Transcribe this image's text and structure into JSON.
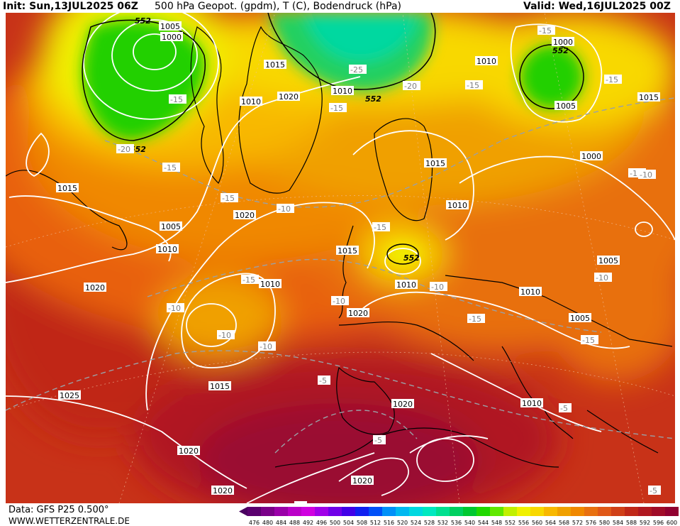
{
  "header": {
    "init": "Init: Sun,13JUL2025 06Z",
    "title": "500 hPa Geopot. (gpdm), T (C), Bodendruck (hPa)",
    "valid": "Valid: Wed,16JUL2025 00Z"
  },
  "footer": {
    "data_label": "Data: GFS P25 0.500°",
    "site": "WWW.WETTERZENTRALE.DE"
  },
  "colorbar": {
    "ticks": [
      "476",
      "480",
      "484",
      "488",
      "492",
      "496",
      "500",
      "504",
      "508",
      "512",
      "516",
      "520",
      "524",
      "528",
      "532",
      "536",
      "540",
      "544",
      "548",
      "552",
      "556",
      "560",
      "564",
      "568",
      "572",
      "576",
      "580",
      "584",
      "588",
      "592",
      "596",
      "600"
    ],
    "colors": [
      "#5a006e",
      "#7a0088",
      "#9a00a8",
      "#bb00c8",
      "#d000e0",
      "#a000e8",
      "#7000e8",
      "#4000e8",
      "#1020f0",
      "#0050f8",
      "#0090f8",
      "#00b8f0",
      "#00d8e0",
      "#00e8c0",
      "#00e090",
      "#00d060",
      "#00c830",
      "#20d800",
      "#60e800",
      "#c0f000",
      "#f0f000",
      "#f8d800",
      "#f8b800",
      "#f0a000",
      "#f08800",
      "#e87010",
      "#e05818",
      "#d04018",
      "#c02818",
      "#b01820",
      "#a00c28",
      "#900030"
    ],
    "arrow_left": "#4a0060",
    "arrow_right": "#e040e0"
  },
  "isobar_labels": [
    "1005",
    "1000",
    "1015",
    "1010",
    "1020",
    "1010",
    "1010",
    "1000",
    "1005",
    "1015",
    "1000",
    "1015",
    "1005",
    "1010",
    "1020",
    "1015",
    "1010",
    "1010",
    "1020",
    "1010",
    "1020",
    "1005",
    "1010",
    "1005",
    "1015",
    "1020",
    "1025",
    "1020",
    "1020",
    "1010",
    "1020",
    "1015"
  ],
  "geopot_labels": [
    "552",
    "552",
    "552",
    "552",
    "552"
  ],
  "temp_labels": [
    "-15",
    "-25",
    "-20",
    "-15",
    "-15",
    "-15",
    "-15",
    "-20",
    "-15",
    "-10",
    "-15",
    "-15",
    "-15",
    "-15",
    "-10",
    "-10",
    "-10",
    "-15",
    "-15",
    "-10",
    "-10",
    "-10",
    "-10",
    "-5",
    "-5",
    "-5",
    "-5",
    "-5"
  ]
}
